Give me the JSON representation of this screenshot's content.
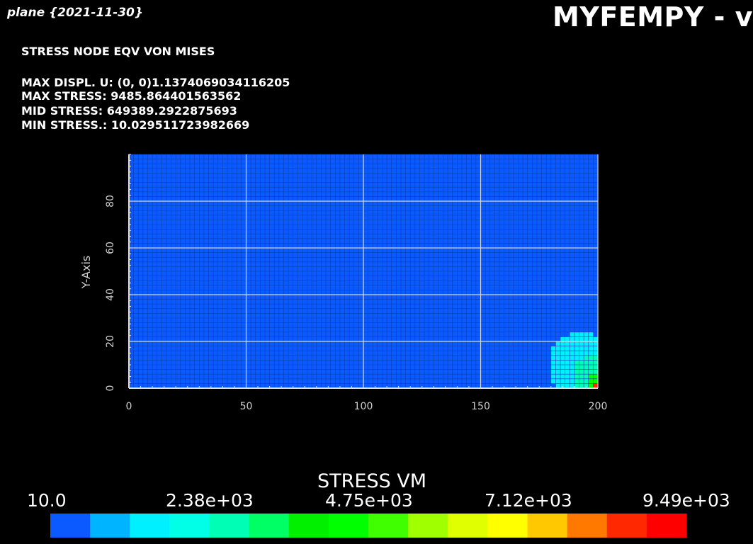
{
  "header": {
    "plane_label": "plane {2021-11-30}",
    "app_title": "MYFEMPY - v"
  },
  "results": {
    "heading": "STRESS NODE EQV VON MISES",
    "lines": [
      "MAX DISPL. U:   (0, 0)1.1374069034116205",
      "MAX STRESS: 9485.864401563562",
      "MID STRESS: 649389.2922875693",
      "MIN STRESS.: 10.029511723982669"
    ]
  },
  "chart_data": {
    "type": "heatmap",
    "title": "",
    "xlabel": "",
    "ylabel": "Y-Axis",
    "xlim": [
      0,
      200
    ],
    "ylim": [
      0,
      100
    ],
    "x_ticks": [
      "0",
      "50",
      "100",
      "150",
      "200"
    ],
    "y_ticks": [
      "0",
      "20",
      "40",
      "60",
      "80"
    ],
    "grid": true,
    "mesh": {
      "nx": 100,
      "ny": 50
    },
    "field": {
      "name": "STRESS VM",
      "min": 10.0,
      "max": 9485.864401563562,
      "background_value": 300,
      "hotspots": [
        {
          "x": 193,
          "y": 10,
          "r": 14,
          "value": 1250
        },
        {
          "x": 197,
          "y": 6,
          "r": 8,
          "value": 2600
        },
        {
          "x": 199,
          "y": 2,
          "r": 4,
          "value": 4200
        },
        {
          "x": 200,
          "y": 0,
          "r": 1.5,
          "value": 8800
        }
      ]
    },
    "colorbar": {
      "title": "STRESS VM",
      "tick_labels": [
        "10.0",
        "2.38e+03",
        "4.75e+03",
        "7.12e+03",
        "9.49e+03"
      ],
      "colors": [
        "#0a5aff",
        "#00b4ff",
        "#00f0ff",
        "#00ffe6",
        "#00ffb4",
        "#00ff64",
        "#00f000",
        "#00ff00",
        "#40ff00",
        "#a0ff00",
        "#e0ff00",
        "#ffff00",
        "#ffc800",
        "#ff7800",
        "#ff2800",
        "#ff0000"
      ]
    }
  }
}
